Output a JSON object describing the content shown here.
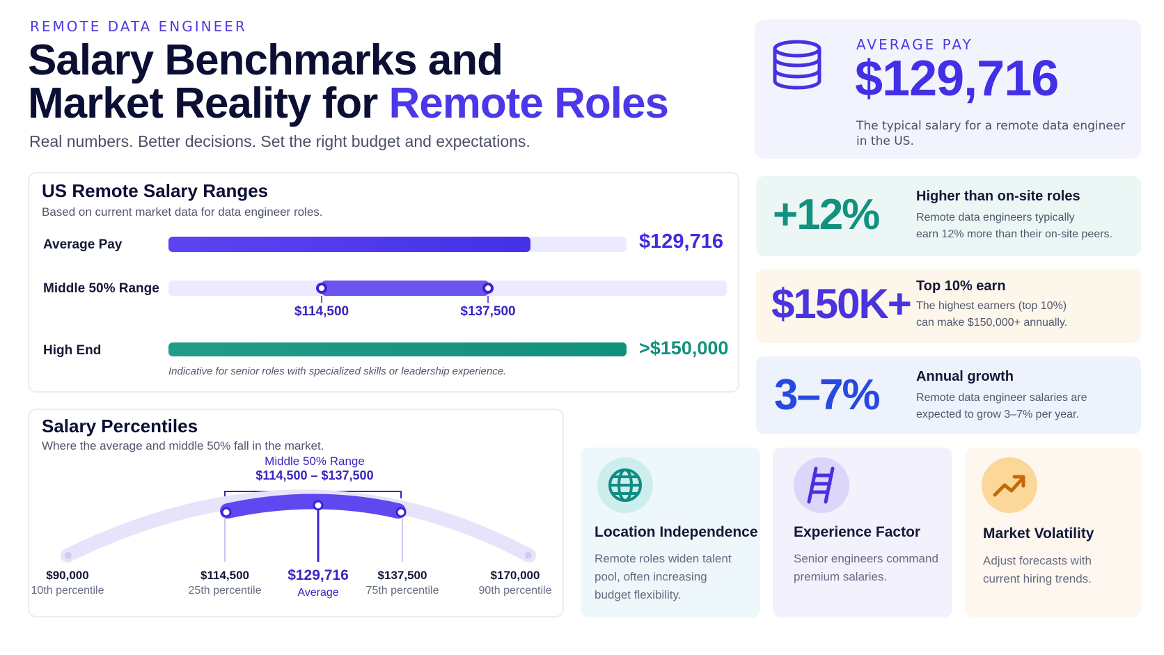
{
  "header": {
    "eyebrow": "REMOTE DATA ENGINEER",
    "title_line1": "Salary Benchmarks and",
    "title_line2_a": "Market Reality for ",
    "title_line2_b": "Remote Roles",
    "subtitle": "Real numbers. Better decisions. Set the right budget and expectations."
  },
  "ranges": {
    "title": "US Remote Salary Ranges",
    "subtitle": "Based on current market data for data engineer roles.",
    "average": {
      "label": "Average Pay",
      "value": "$129,716",
      "fill_fraction": 0.79
    },
    "middle": {
      "label": "Middle 50% Range",
      "low": "$114,500",
      "high": "$137,500"
    },
    "high_end": {
      "label": "High End",
      "value": ">$150,000",
      "note": "Indicative for senior roles with specialized skills or leadership experience."
    }
  },
  "percentiles": {
    "title": "Salary Percentiles",
    "subtitle": "Where the average and middle 50% fall in the market.",
    "bracket_title": "Middle 50% Range",
    "bracket_range": "$114,500 – $137,500",
    "points": [
      {
        "value": "$90,000",
        "label": "10th percentile"
      },
      {
        "value": "$114,500",
        "label": "25th percentile"
      },
      {
        "value": "$129,716",
        "label": "Average"
      },
      {
        "value": "$137,500",
        "label": "75th percentile"
      },
      {
        "value": "$170,000",
        "label": "90th percentile"
      }
    ]
  },
  "average_card": {
    "eyebrow": "AVERAGE PAY",
    "value": "$129,716",
    "desc_line1": "The typical salary for a remote data engineer",
    "desc_line2": "in the US.",
    "icon": "coins-icon"
  },
  "stats": [
    {
      "big": "+12%",
      "title": "Higher than on-site roles",
      "desc1": "Remote data engineers typically",
      "desc2": "earn 12% more than their on-site peers.",
      "color": "#13917f",
      "bg": "#ecf7f5"
    },
    {
      "big": "$150K+",
      "title": "Top 10% earn",
      "desc1": "The highest earners (top 10%)",
      "desc2": "can make $150,000+ annually.",
      "color": "#4a34e0",
      "bg": "#fdf6ea"
    },
    {
      "big": "3–7%",
      "title": "Annual growth",
      "desc1": "Remote data engineer salaries are",
      "desc2": "expected to grow 3–7% per year.",
      "color": "#2749e0",
      "bg": "#eef2fc"
    }
  ],
  "features": [
    {
      "title": "Location Independence",
      "desc1": "Remote roles widen talent",
      "desc2": "pool, often increasing",
      "desc3": "budget flexibility.",
      "icon": "globe-icon",
      "bg": "#eef7f9",
      "icon_bg": "#cdeeed",
      "icon_color": "#0f8c84"
    },
    {
      "title": "Experience Factor",
      "desc1": "Senior engineers command",
      "desc2": "premium salaries.",
      "desc3": "",
      "icon": "ladder-icon",
      "bg": "#f2f1fc",
      "icon_bg": "#dcd6fb",
      "icon_color": "#4a2fe0"
    },
    {
      "title": "Market Volatility",
      "desc1": "Adjust forecasts with",
      "desc2": "current hiring trends.",
      "desc3": "",
      "icon": "trend-up-icon",
      "bg": "#fdf7ef",
      "icon_bg": "#fbd79a",
      "icon_color": "#d97706"
    }
  ]
}
